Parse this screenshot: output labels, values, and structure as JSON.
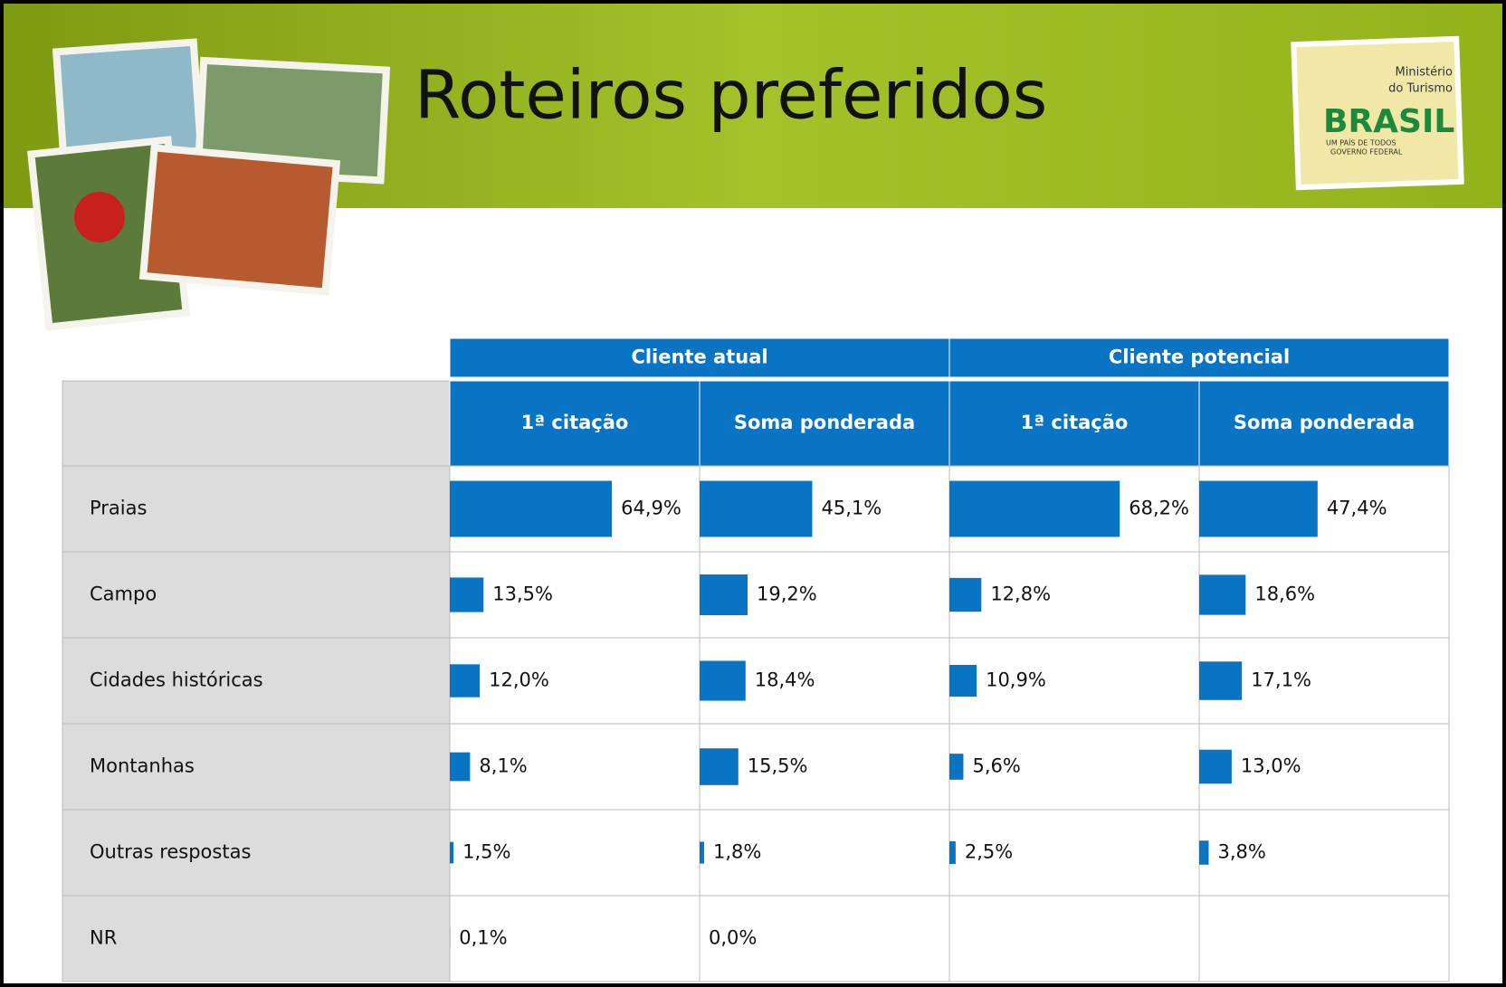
{
  "chart_data": {
    "type": "bar-table",
    "title": "Roteiros preferidos",
    "color": "#0a74c4",
    "categories": [
      "Praias",
      "Campo",
      "Cidades históricas",
      "Montanhas",
      "Outras respostas",
      "NR"
    ],
    "groups": [
      {
        "name": "Cliente atual",
        "series": [
          {
            "name": "1ª citação",
            "values": [
              64.9,
              13.5,
              12.0,
              8.1,
              1.5,
              0.1
            ],
            "value_labels": [
              "64,9%",
              "13,5%",
              "12,0%",
              "8,1%",
              "1,5%",
              "0,1%"
            ]
          },
          {
            "name": "Soma ponderada",
            "values": [
              45.1,
              19.2,
              18.4,
              15.5,
              1.8,
              0.0
            ],
            "value_labels": [
              "45,1%",
              "19,2%",
              "18,4%",
              "15,5%",
              "1,8%",
              "0,0%"
            ]
          }
        ]
      },
      {
        "name": "Cliente potencial",
        "series": [
          {
            "name": "1ª citação",
            "values": [
              68.2,
              12.8,
              10.9,
              5.6,
              2.5,
              null
            ],
            "value_labels": [
              "68,2%",
              "12,8%",
              "10,9%",
              "5,6%",
              "2,5%",
              null
            ]
          },
          {
            "name": "Soma ponderada",
            "values": [
              47.4,
              18.6,
              17.1,
              13.0,
              3.8,
              null
            ],
            "value_labels": [
              "47,4%",
              "18,6%",
              "17,1%",
              "13,0%",
              "3,8%",
              null
            ]
          }
        ]
      }
    ]
  },
  "logo": {
    "line1": "Ministério",
    "line2": "do Turismo",
    "brand": "BRASIL",
    "tagline": "UM PAÍS DE TODOS",
    "gov": "GOVERNO FEDERAL"
  }
}
